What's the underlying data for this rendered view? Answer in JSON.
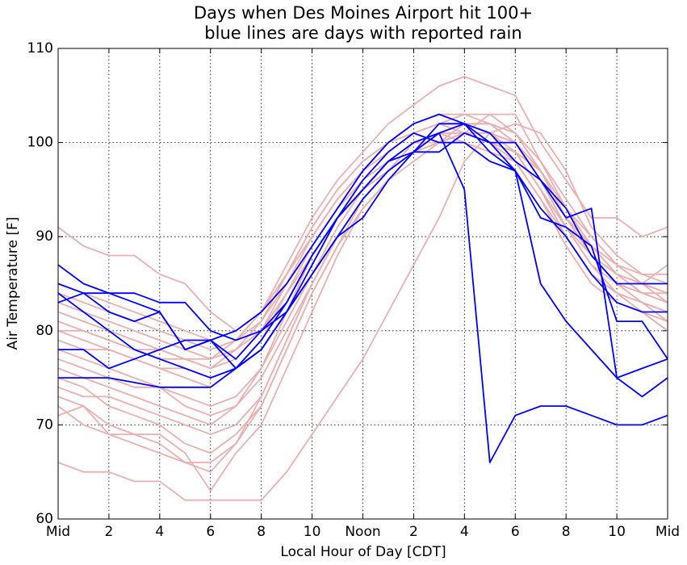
{
  "chart_data": {
    "type": "line",
    "title": "Days when Des Moines Airport hit 100+",
    "subtitle": "blue lines are days with reported rain",
    "x_label": "Local Hour of Day [CDT]",
    "y_label": "Air Temperature [F]",
    "x": [
      0,
      1,
      2,
      3,
      4,
      5,
      6,
      7,
      8,
      9,
      10,
      11,
      12,
      13,
      14,
      15,
      16,
      17,
      18,
      19,
      20,
      21,
      22,
      23,
      24
    ],
    "xlim": [
      0,
      24
    ],
    "xticks": [
      {
        "value": 0,
        "label": "Mid"
      },
      2,
      4,
      6,
      8,
      10,
      {
        "value": 12,
        "label": "Noon"
      },
      {
        "value": 14,
        "label": "2"
      },
      {
        "value": 16,
        "label": "4"
      },
      {
        "value": 18,
        "label": "6"
      },
      {
        "value": 20,
        "label": "8"
      },
      {
        "value": 22,
        "label": "10"
      },
      {
        "value": 24,
        "label": "Mid"
      }
    ],
    "ylim": [
      60,
      110
    ],
    "yticks": [
      60,
      70,
      80,
      90,
      100,
      110
    ],
    "grid": true,
    "series": [
      {
        "color": "#e8b0b0",
        "values": [
          91,
          89,
          88,
          88,
          86,
          85,
          82,
          80,
          82,
          87,
          92,
          96,
          99,
          102,
          104,
          106,
          107,
          106,
          105,
          100,
          96,
          92,
          92,
          90,
          91
        ]
      },
      {
        "color": "#e8b0b0",
        "values": [
          66,
          65,
          65,
          64,
          64,
          62,
          62,
          62,
          62,
          65,
          69,
          73,
          77,
          82,
          87,
          92,
          98,
          101,
          102,
          101,
          97,
          91,
          88,
          86,
          86
        ]
      },
      {
        "color": "#e8b0b0",
        "values": [
          73,
          72,
          70,
          69,
          69,
          67,
          63,
          67,
          70,
          76,
          82,
          88,
          93,
          96,
          99,
          100,
          102,
          102,
          100,
          97,
          92,
          88,
          85,
          83,
          82
        ]
      },
      {
        "color": "#e8b0b0",
        "values": [
          71,
          72,
          69,
          69,
          68,
          66,
          66,
          68,
          72,
          78,
          84,
          89,
          94,
          97,
          100,
          101,
          101,
          103,
          103,
          98,
          94,
          90,
          87,
          85,
          83
        ]
      },
      {
        "color": "#e8b0b0",
        "values": [
          80,
          79,
          78,
          77,
          76,
          75,
          74,
          76,
          79,
          84,
          89,
          93,
          96,
          99,
          101,
          102,
          103,
          103,
          101,
          97,
          93,
          89,
          86,
          84,
          83
        ]
      },
      {
        "color": "#e8b0b0",
        "values": [
          82,
          81,
          80,
          79,
          78,
          77,
          76,
          77,
          80,
          85,
          90,
          94,
          97,
          100,
          102,
          103,
          102,
          101,
          100,
          96,
          91,
          87,
          84,
          82,
          81
        ]
      },
      {
        "color": "#e8b0b0",
        "values": [
          76,
          75,
          74,
          73,
          72,
          71,
          70,
          72,
          76,
          82,
          88,
          92,
          95,
          98,
          100,
          101,
          101,
          100,
          99,
          95,
          90,
          86,
          84,
          83,
          82
        ]
      },
      {
        "color": "#e8b0b0",
        "values": [
          84,
          83,
          82,
          81,
          80,
          79,
          78,
          79,
          81,
          86,
          90,
          94,
          97,
          99,
          101,
          102,
          101,
          100,
          98,
          94,
          89,
          85,
          83,
          82,
          80
        ]
      },
      {
        "color": "#e8b0b0",
        "values": [
          78,
          77,
          76,
          75,
          74,
          73,
          72,
          73,
          76,
          81,
          86,
          91,
          95,
          98,
          100,
          100,
          101,
          101,
          99,
          95,
          91,
          87,
          85,
          84,
          84
        ]
      },
      {
        "color": "#e8b0b0",
        "values": [
          74,
          73,
          73,
          72,
          71,
          70,
          69,
          70,
          73,
          79,
          85,
          90,
          94,
          97,
          99,
          101,
          102,
          102,
          101,
          97,
          92,
          88,
          86,
          85,
          84
        ]
      },
      {
        "color": "#e8b0b0",
        "values": [
          79,
          78,
          78,
          77,
          76,
          76,
          75,
          76,
          78,
          82,
          87,
          92,
          96,
          99,
          101,
          102,
          102,
          101,
          100,
          96,
          91,
          88,
          86,
          85,
          87
        ]
      },
      {
        "color": "#e8b0b0",
        "values": [
          81,
          80,
          79,
          78,
          77,
          77,
          76,
          78,
          81,
          85,
          89,
          93,
          96,
          98,
          100,
          101,
          100,
          99,
          98,
          94,
          90,
          86,
          84,
          83,
          82
        ]
      },
      {
        "color": "#e8b0b0",
        "values": [
          77,
          76,
          75,
          74,
          74,
          72,
          71,
          72,
          75,
          80,
          85,
          90,
          94,
          97,
          99,
          100,
          101,
          100,
          99,
          95,
          90,
          86,
          84,
          82,
          80
        ]
      },
      {
        "color": "#e8b0b0",
        "values": [
          83,
          82,
          81,
          80,
          79,
          78,
          77,
          79,
          82,
          86,
          91,
          95,
          98,
          100,
          101,
          102,
          102,
          101,
          99,
          95,
          91,
          89,
          86,
          84,
          83
        ]
      },
      {
        "color": "#e8b0b0",
        "values": [
          75,
          74,
          72,
          71,
          70,
          68,
          67,
          69,
          72,
          78,
          84,
          89,
          93,
          96,
          98,
          100,
          101,
          101,
          100,
          96,
          92,
          88,
          85,
          83,
          81
        ]
      },
      {
        "color": "#e8b0b0",
        "values": [
          80,
          80,
          79,
          78,
          78,
          77,
          77,
          78,
          80,
          84,
          88,
          92,
          95,
          97,
          99,
          100,
          101,
          100,
          99,
          97,
          93,
          90,
          87,
          86,
          85
        ]
      },
      {
        "color": "#e8b0b0",
        "values": [
          72,
          70,
          69,
          68,
          67,
          66,
          65,
          68,
          73,
          79,
          85,
          90,
          94,
          97,
          99,
          101,
          102,
          102,
          101,
          98,
          93,
          89,
          86,
          84,
          83
        ]
      },
      {
        "color": "#e8b0b0",
        "values": [
          85,
          84,
          83,
          82,
          81,
          80,
          79,
          80,
          82,
          86,
          91,
          95,
          98,
          100,
          102,
          103,
          103,
          102,
          100,
          97,
          92,
          89,
          87,
          85,
          84
        ]
      },
      {
        "color": "#0000ff",
        "values": [
          75,
          75,
          75,
          74.5,
          74,
          74,
          74,
          76,
          79,
          83,
          88,
          92,
          95,
          98,
          99,
          101,
          95,
          66,
          71,
          72,
          72,
          71,
          70,
          70,
          71
        ]
      },
      {
        "color": "#0000ff",
        "values": [
          87,
          85,
          84,
          83,
          82,
          78,
          79,
          77,
          80,
          83,
          88,
          92,
          95,
          98,
          100,
          101,
          102,
          99,
          97,
          92,
          91,
          89,
          81,
          81,
          77
        ]
      },
      {
        "color": "#0000ff",
        "values": [
          85,
          84,
          84,
          84,
          83,
          83,
          80,
          79,
          80,
          82,
          86,
          90,
          92,
          96,
          99,
          102,
          102,
          100,
          97,
          85,
          81,
          78,
          75,
          73,
          75
        ]
      },
      {
        "color": "#0000ff",
        "values": [
          83,
          84,
          82,
          81,
          82,
          78,
          79,
          80,
          82,
          85,
          89,
          93,
          97,
          100,
          102,
          103,
          102,
          101,
          98,
          96,
          93,
          88,
          85,
          85,
          85
        ]
      },
      {
        "color": "#0000ff",
        "values": [
          84,
          82,
          80,
          78,
          77,
          76,
          75,
          76,
          78,
          82,
          86,
          90,
          94,
          97,
          99,
          99,
          101,
          100,
          100,
          96,
          92,
          93,
          75,
          76,
          77
        ]
      },
      {
        "color": "#0000ff",
        "values": [
          78,
          78,
          76,
          77,
          78,
          79,
          79,
          76,
          78,
          82,
          87,
          92,
          96,
          99,
          101,
          100,
          100,
          98,
          97,
          93,
          90,
          86,
          83,
          82,
          82
        ]
      }
    ]
  }
}
